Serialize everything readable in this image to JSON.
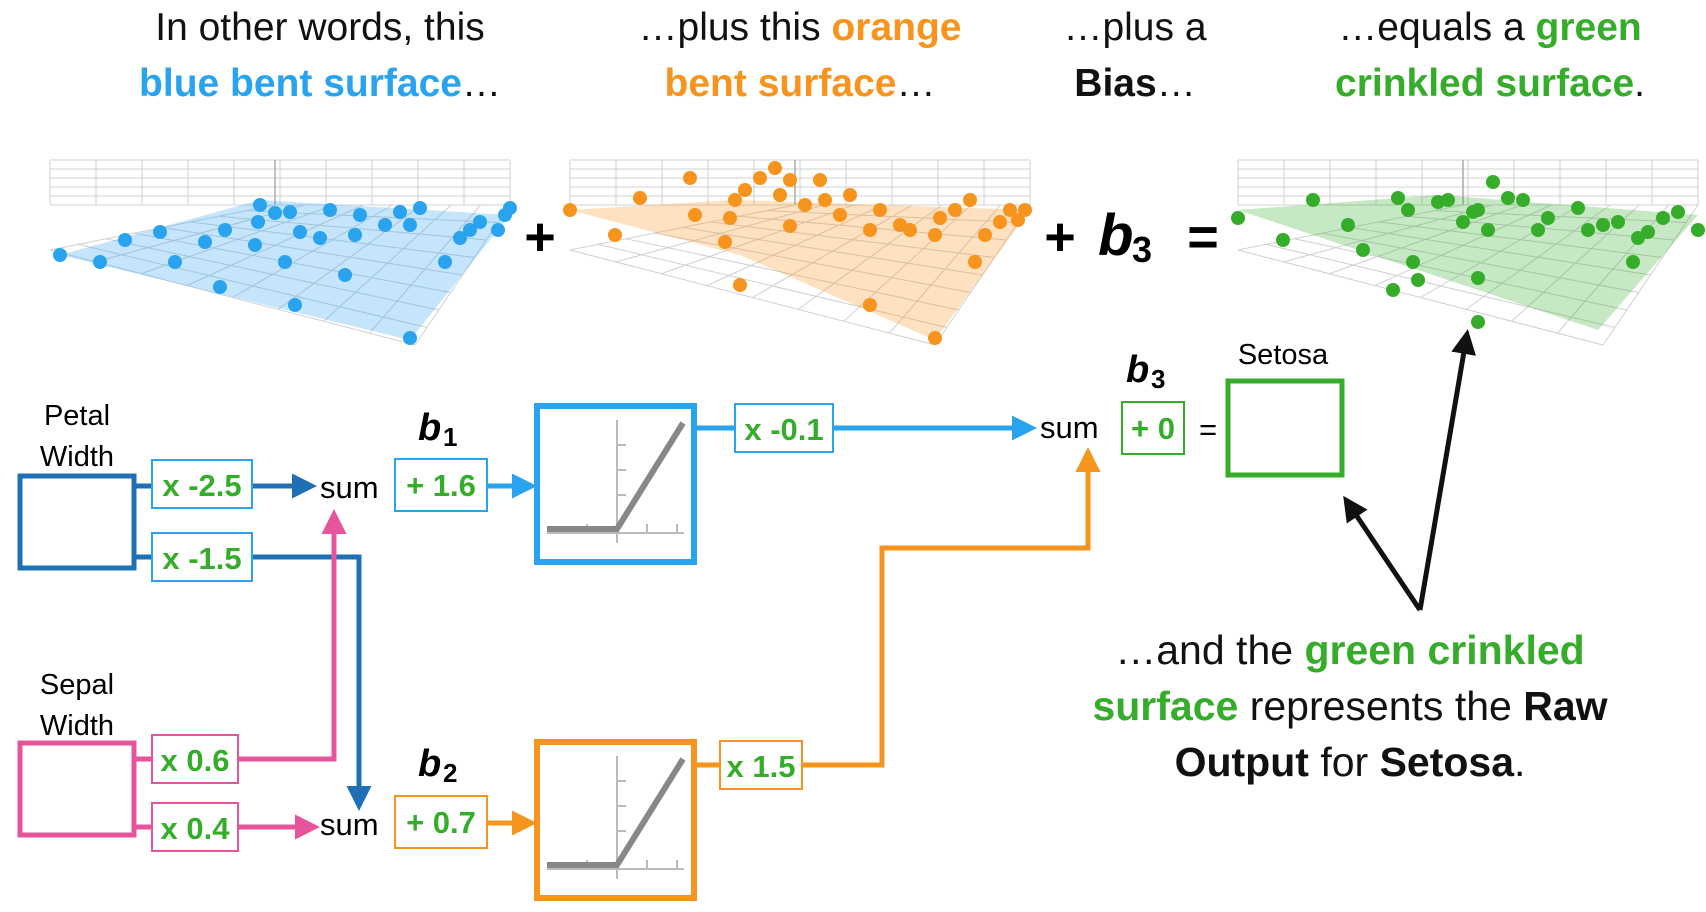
{
  "captions": {
    "blue": {
      "pre": "In other words, this",
      "hl": "blue bent surface",
      "post": "…"
    },
    "orange": {
      "pre": "…plus this",
      "hl1": "orange",
      "hl2": "bent surface",
      "post": "…"
    },
    "bias": {
      "pre": "…plus a",
      "hl": "Bias",
      "post": "…"
    },
    "green": {
      "pre": "…equals a",
      "hl1": "green",
      "hl2": "crinkled surface",
      "post": "."
    }
  },
  "equation": {
    "plus": "+",
    "plus_b3": "+",
    "b": "b",
    "sub": "3",
    "equals": "="
  },
  "inputs": {
    "petal_line1": "Petal",
    "petal_line2": "Width",
    "sepal_line1": "Sepal",
    "sepal_line2": "Width"
  },
  "weights": {
    "w1": "x -2.5",
    "w2": "x -1.5",
    "w3": "x 0.6",
    "w4": "x 0.4",
    "w5": "x -0.1",
    "w6": "x 1.5"
  },
  "biases": {
    "b1_label": "b",
    "b1_sub": "1",
    "b1_value": "+ 1.6",
    "b2_label": "b",
    "b2_sub": "2",
    "b2_value": "+ 0.7",
    "b3_label": "b",
    "b3_sub": "3",
    "b3_value": "+ 0"
  },
  "sum_label": "sum",
  "equals_sign": "=",
  "output_label": "Setosa",
  "explanation": {
    "l1_pre": "…and the",
    "l1_hl": "green crinkled",
    "l2_hl": "surface",
    "l2_post": "represents the",
    "l2_bold": "Raw",
    "l3_bold1": "Output",
    "l3_mid": "for",
    "l3_bold2": "Setosa",
    "l3_post": "."
  },
  "colors": {
    "blue": "#2aa3ef",
    "dark_blue": "#1e6fb4",
    "orange": "#f7941e",
    "pink": "#e6559c",
    "green": "#36ad2a",
    "grey": "#888888"
  }
}
